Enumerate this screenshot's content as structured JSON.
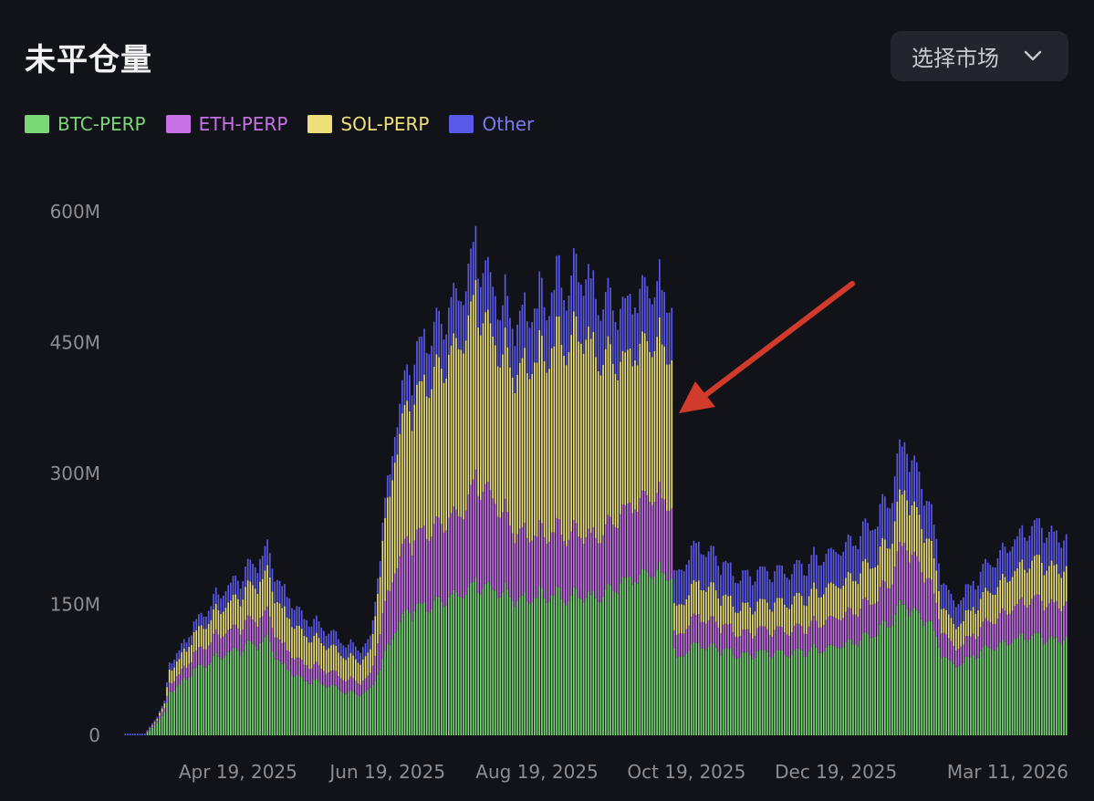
{
  "header": {
    "title": "未平仓量",
    "market_select_label": "选择市场"
  },
  "colors": {
    "background": "#121318",
    "btc": "#79d776",
    "eth": "#c671e6",
    "sol": "#ede07a",
    "other": "#5a58e6",
    "annotation_arrow": "#d23a2c"
  },
  "chart_data": {
    "type": "bar",
    "stacked": true,
    "title": "未平仓量",
    "legend_position": "top-left",
    "y_ticks": [
      "0",
      "150M",
      "300M",
      "450M",
      "600M"
    ],
    "y_tick_values": [
      0,
      150,
      300,
      450,
      600
    ],
    "ylim": [
      0,
      600
    ],
    "y_unit": "M",
    "x_ticks": [
      "Apr 19, 2025",
      "Jun 19, 2025",
      "Aug 19, 2025",
      "Oct 19, 2025",
      "Dec 19, 2025",
      "Mar 11, 2026"
    ],
    "x_tick_day_index": [
      46,
      107,
      168,
      229,
      290,
      372
    ],
    "day_count": 385,
    "series_names": [
      "BTC-PERP",
      "ETH-PERP",
      "SOL-PERP",
      "Other"
    ],
    "anchors": {
      "day": [
        0,
        8,
        13,
        16,
        18,
        20,
        23,
        28,
        33,
        38,
        43,
        48,
        53,
        58,
        63,
        70,
        72,
        76,
        80,
        85,
        90,
        95,
        100,
        105,
        110,
        115,
        119,
        121,
        124,
        126,
        129,
        133,
        138,
        143,
        148,
        153,
        158,
        163,
        168,
        173,
        178,
        183,
        188,
        193,
        198,
        203,
        208,
        213,
        218,
        223,
        224,
        225,
        230,
        234,
        238,
        243,
        248,
        253,
        258,
        263,
        268,
        273,
        278,
        283,
        288,
        293,
        298,
        303,
        308,
        313,
        318,
        323,
        328,
        333,
        338,
        343,
        348,
        353,
        358,
        363,
        368,
        373,
        378,
        384
      ],
      "btc": [
        0,
        0,
        15,
        25,
        50,
        52,
        60,
        75,
        82,
        90,
        95,
        100,
        105,
        110,
        82,
        68,
        64,
        62,
        60,
        55,
        50,
        46,
        52,
        85,
        120,
        140,
        145,
        148,
        145,
        150,
        155,
        160,
        165,
        175,
        170,
        165,
        160,
        155,
        158,
        162,
        158,
        160,
        160,
        155,
        165,
        175,
        180,
        190,
        185,
        180,
        95,
        85,
        100,
        105,
        100,
        98,
        95,
        92,
        95,
        95,
        94,
        96,
        97,
        98,
        100,
        104,
        108,
        112,
        120,
        135,
        150,
        140,
        130,
        95,
        80,
        85,
        95,
        100,
        105,
        110,
        112,
        112,
        108,
        112
      ],
      "eth": [
        0,
        0,
        3,
        5,
        10,
        11,
        12,
        18,
        22,
        25,
        25,
        26,
        28,
        30,
        24,
        20,
        19,
        18,
        17,
        16,
        15,
        14,
        16,
        50,
        70,
        80,
        82,
        84,
        86,
        85,
        90,
        92,
        95,
        120,
        110,
        95,
        80,
        75,
        70,
        72,
        74,
        72,
        70,
        68,
        75,
        80,
        85,
        90,
        85,
        80,
        20,
        24,
        30,
        32,
        30,
        28,
        26,
        25,
        26,
        26,
        26,
        27,
        28,
        30,
        32,
        34,
        35,
        38,
        40,
        50,
        70,
        60,
        48,
        30,
        20,
        22,
        26,
        30,
        34,
        38,
        40,
        42,
        40,
        40
      ],
      "sol": [
        0,
        0,
        2,
        5,
        15,
        16,
        18,
        22,
        25,
        28,
        32,
        36,
        40,
        45,
        40,
        36,
        34,
        32,
        30,
        28,
        26,
        24,
        26,
        80,
        130,
        150,
        160,
        165,
        170,
        175,
        180,
        190,
        200,
        210,
        190,
        180,
        185,
        190,
        200,
        210,
        220,
        225,
        230,
        200,
        190,
        170,
        175,
        180,
        175,
        170,
        30,
        32,
        36,
        38,
        38,
        34,
        30,
        30,
        30,
        31,
        32,
        34,
        35,
        36,
        37,
        38,
        40,
        42,
        44,
        50,
        60,
        55,
        45,
        30,
        25,
        28,
        32,
        34,
        38,
        40,
        42,
        44,
        42,
        40
      ],
      "other": [
        2,
        2,
        2,
        3,
        8,
        9,
        10,
        12,
        15,
        18,
        20,
        22,
        25,
        28,
        25,
        22,
        20,
        19,
        18,
        16,
        15,
        14,
        15,
        20,
        30,
        40,
        48,
        50,
        52,
        50,
        52,
        55,
        58,
        60,
        58,
        56,
        58,
        60,
        62,
        64,
        66,
        68,
        70,
        65,
        62,
        60,
        62,
        64,
        62,
        60,
        36,
        38,
        42,
        44,
        40,
        38,
        36,
        36,
        36,
        36,
        36,
        36,
        37,
        38,
        38,
        40,
        42,
        44,
        46,
        50,
        55,
        50,
        42,
        30,
        26,
        28,
        30,
        32,
        34,
        36,
        38,
        40,
        38,
        36
      ]
    },
    "annotation": "red arrow pointing to the sharp open-interest drop around Oct 10, 2025"
  }
}
